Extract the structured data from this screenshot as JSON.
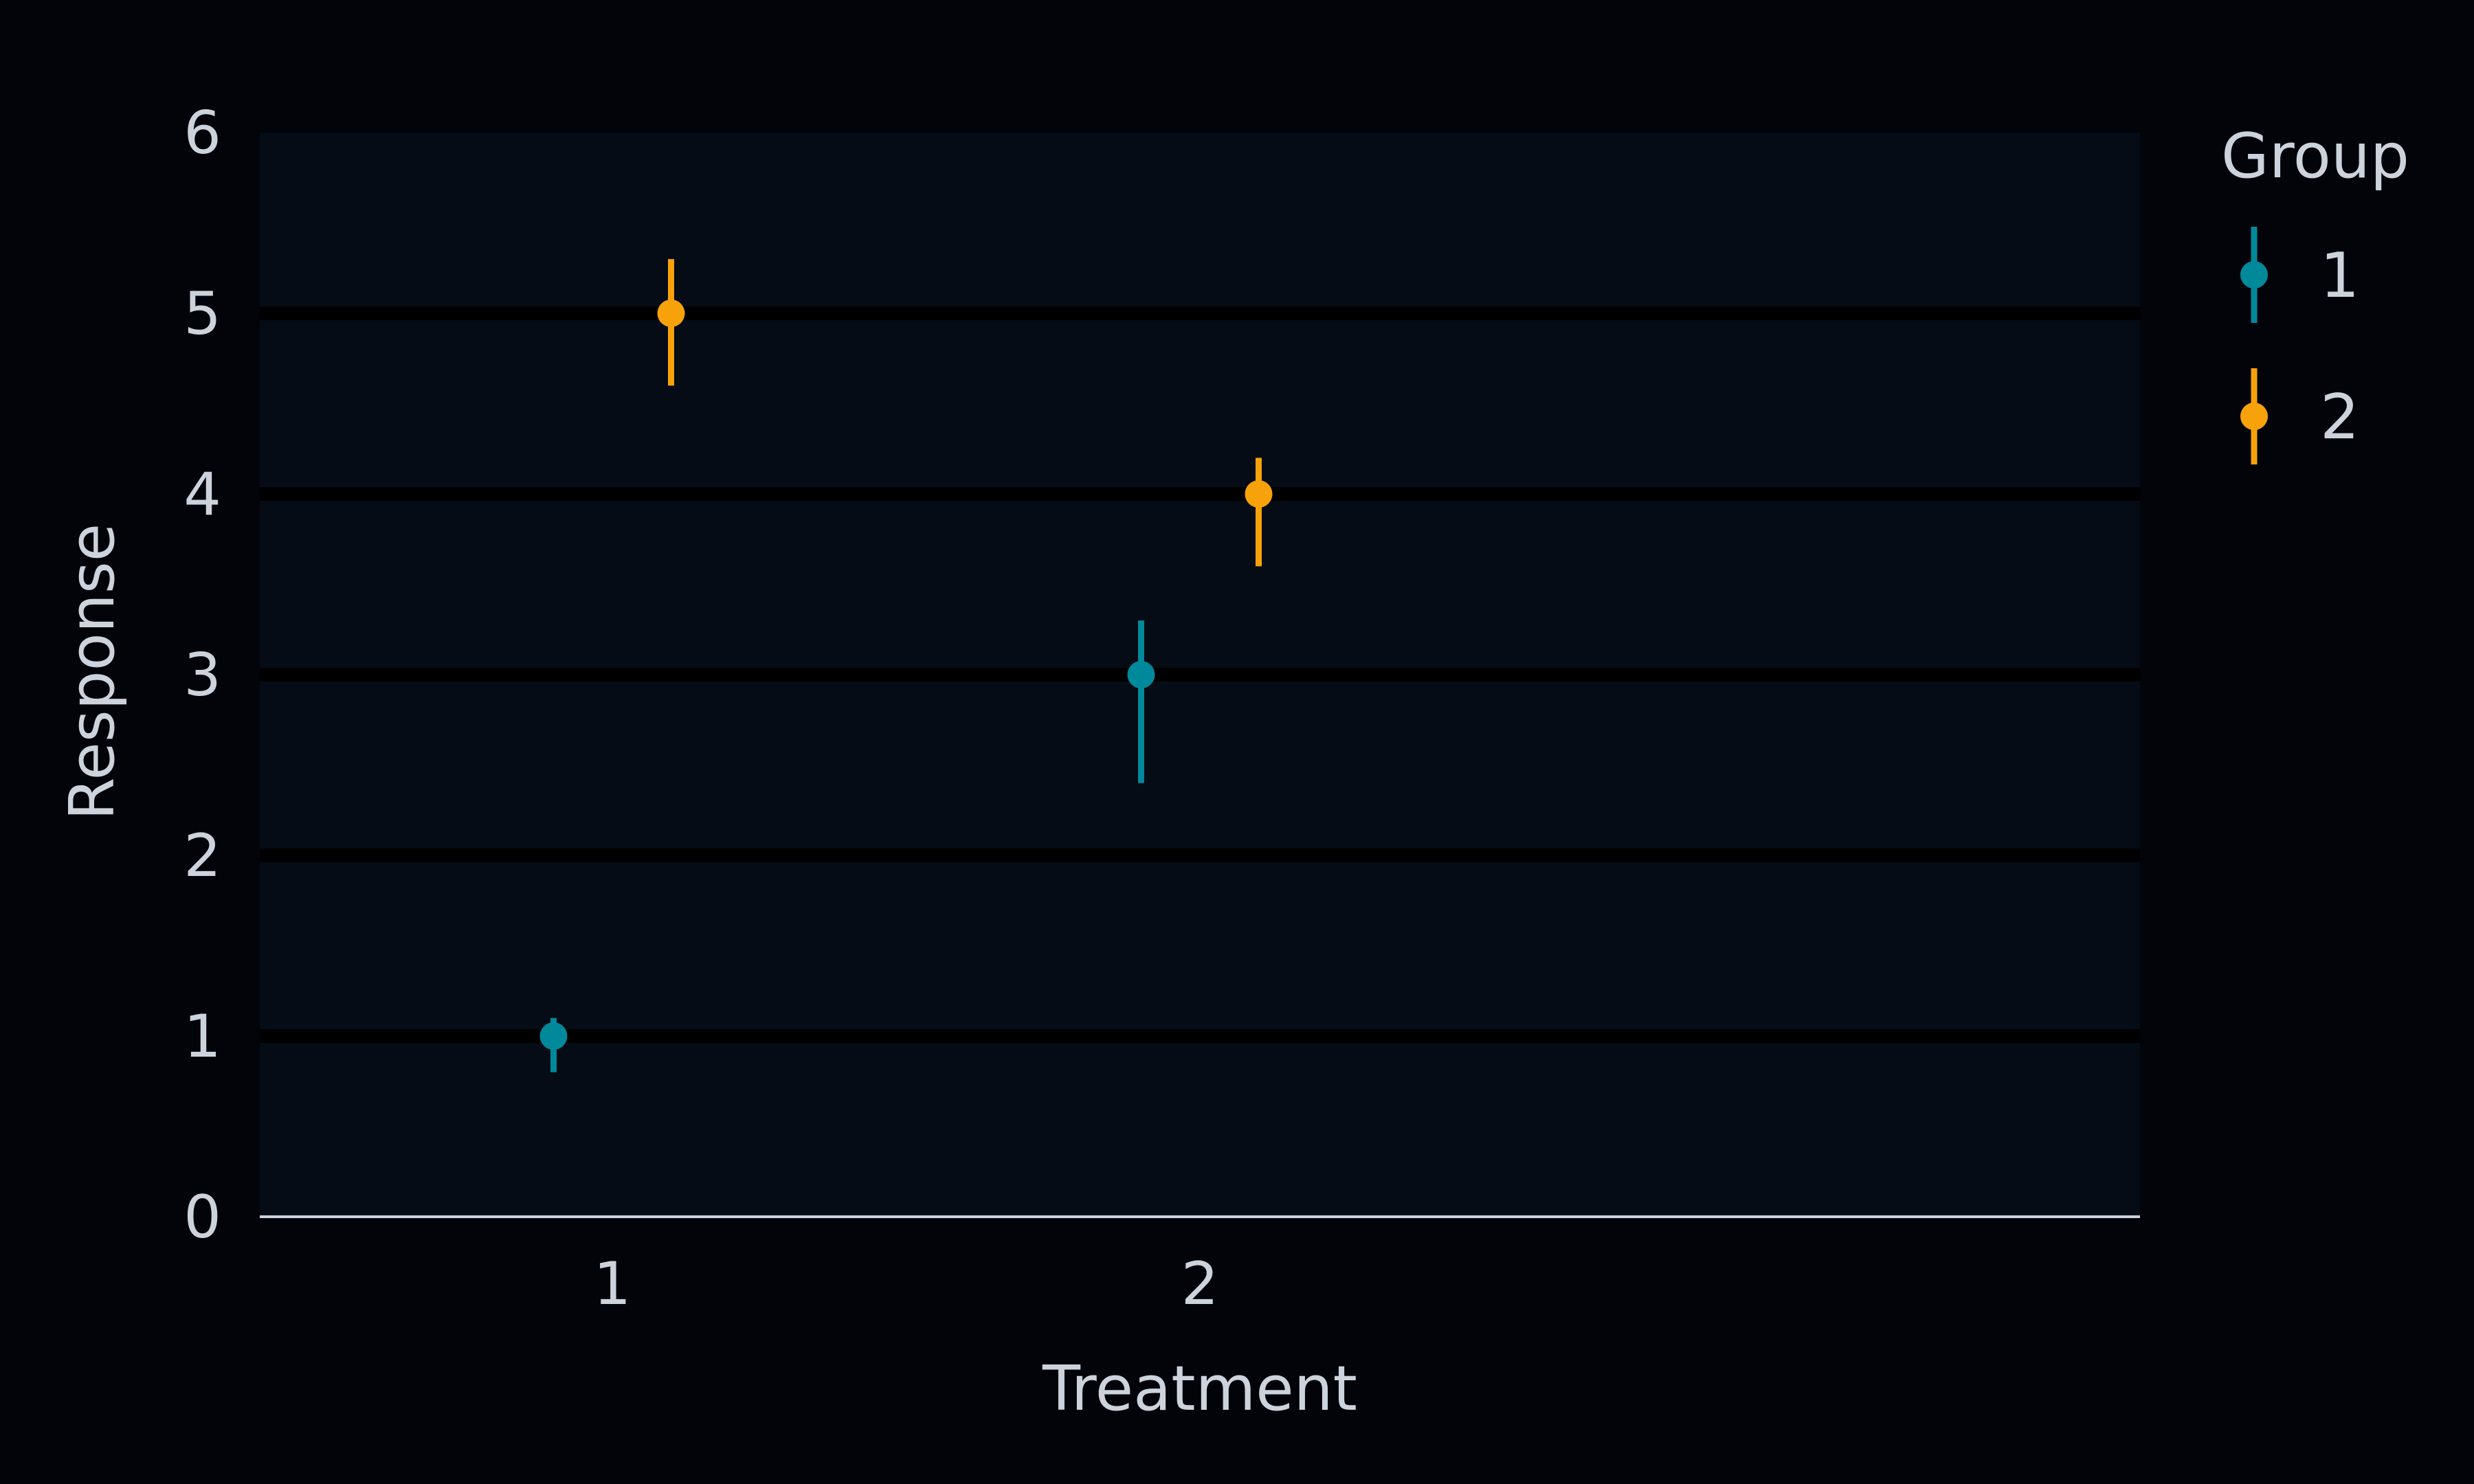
{
  "chart_data": {
    "type": "scatter",
    "subtype": "point-with-error-bars",
    "title": "",
    "xlabel": "Treatment",
    "ylabel": "Response",
    "categories": [
      "1",
      "2"
    ],
    "ylim": [
      0,
      6
    ],
    "yticks": [
      "0",
      "1",
      "2",
      "3",
      "4",
      "5",
      "6"
    ],
    "grid": {
      "horizontal": true,
      "vertical": false
    },
    "legend": {
      "title": "Group",
      "placement": "right"
    },
    "series": [
      {
        "name": "1",
        "color": "#00899a",
        "points": [
          {
            "x": "1",
            "y": 1.0,
            "low": 0.8,
            "high": 1.1
          },
          {
            "x": "2",
            "y": 3.0,
            "low": 2.4,
            "high": 3.3
          }
        ]
      },
      {
        "name": "2",
        "color": "#f7a20a",
        "points": [
          {
            "x": "1",
            "y": 5.0,
            "low": 4.6,
            "high": 5.3
          },
          {
            "x": "2",
            "y": 4.0,
            "low": 3.6,
            "high": 4.2
          }
        ]
      }
    ],
    "colors": {
      "background": "#02040a",
      "plot_background": "#050c16",
      "gridline": "#000000",
      "axis_line": "#ccd3dc",
      "text": "#ccd3dc"
    }
  }
}
